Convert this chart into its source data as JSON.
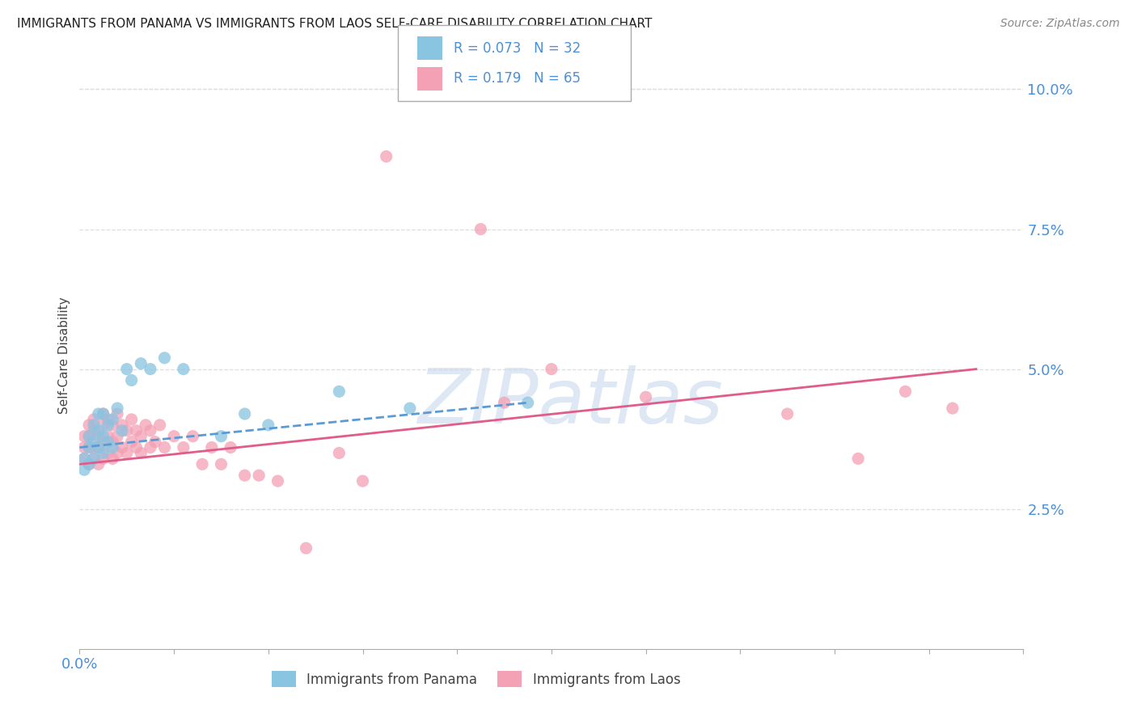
{
  "title": "IMMIGRANTS FROM PANAMA VS IMMIGRANTS FROM LAOS SELF-CARE DISABILITY CORRELATION CHART",
  "source": "Source: ZipAtlas.com",
  "xlabel_panama": "Immigrants from Panama",
  "xlabel_laos": "Immigrants from Laos",
  "ylabel": "Self-Care Disability",
  "xlim": [
    0.0,
    0.2
  ],
  "ylim": [
    0.0,
    0.105
  ],
  "xticks_minor": [
    0.0,
    0.02,
    0.04,
    0.06,
    0.08,
    0.1,
    0.12,
    0.14,
    0.16,
    0.18,
    0.2
  ],
  "xtick_labels_major": {
    "0.0": "0.0%"
  },
  "yticks": [
    0.025,
    0.05,
    0.075,
    0.1
  ],
  "ytick_labels": [
    "2.5%",
    "5.0%",
    "7.5%",
    "10.0%"
  ],
  "color_panama": "#89c4e1",
  "color_laos": "#f4a0b5",
  "color_panama_line": "#5b9bd5",
  "color_laos_line": "#e05c8a",
  "R_panama": 0.073,
  "N_panama": 32,
  "R_laos": 0.179,
  "N_laos": 65,
  "background_color": "#ffffff",
  "title_color": "#222222",
  "axis_color": "#4a90d9",
  "grid_color": "#dddddd",
  "panama_x": [
    0.001,
    0.001,
    0.002,
    0.002,
    0.002,
    0.003,
    0.003,
    0.003,
    0.004,
    0.004,
    0.004,
    0.005,
    0.005,
    0.005,
    0.006,
    0.006,
    0.007,
    0.007,
    0.008,
    0.009,
    0.01,
    0.011,
    0.013,
    0.015,
    0.018,
    0.022,
    0.03,
    0.035,
    0.04,
    0.055,
    0.07,
    0.095
  ],
  "panama_y": [
    0.034,
    0.032,
    0.036,
    0.033,
    0.038,
    0.034,
    0.037,
    0.04,
    0.036,
    0.039,
    0.042,
    0.035,
    0.038,
    0.042,
    0.037,
    0.04,
    0.036,
    0.041,
    0.043,
    0.039,
    0.05,
    0.048,
    0.051,
    0.05,
    0.052,
    0.05,
    0.038,
    0.042,
    0.04,
    0.046,
    0.043,
    0.044
  ],
  "laos_x": [
    0.001,
    0.001,
    0.001,
    0.002,
    0.002,
    0.002,
    0.002,
    0.003,
    0.003,
    0.003,
    0.003,
    0.004,
    0.004,
    0.004,
    0.005,
    0.005,
    0.005,
    0.005,
    0.006,
    0.006,
    0.006,
    0.007,
    0.007,
    0.007,
    0.008,
    0.008,
    0.008,
    0.009,
    0.009,
    0.01,
    0.01,
    0.011,
    0.011,
    0.012,
    0.012,
    0.013,
    0.013,
    0.014,
    0.015,
    0.015,
    0.016,
    0.017,
    0.018,
    0.02,
    0.022,
    0.024,
    0.026,
    0.028,
    0.03,
    0.032,
    0.035,
    0.038,
    0.042,
    0.048,
    0.055,
    0.06,
    0.065,
    0.085,
    0.09,
    0.1,
    0.12,
    0.15,
    0.165,
    0.175,
    0.185
  ],
  "laos_y": [
    0.034,
    0.036,
    0.038,
    0.033,
    0.036,
    0.038,
    0.04,
    0.034,
    0.036,
    0.039,
    0.041,
    0.033,
    0.036,
    0.038,
    0.034,
    0.037,
    0.04,
    0.042,
    0.035,
    0.038,
    0.041,
    0.034,
    0.037,
    0.04,
    0.035,
    0.038,
    0.042,
    0.036,
    0.04,
    0.035,
    0.039,
    0.037,
    0.041,
    0.036,
    0.039,
    0.035,
    0.038,
    0.04,
    0.036,
    0.039,
    0.037,
    0.04,
    0.036,
    0.038,
    0.036,
    0.038,
    0.033,
    0.036,
    0.033,
    0.036,
    0.031,
    0.031,
    0.03,
    0.018,
    0.035,
    0.03,
    0.088,
    0.075,
    0.044,
    0.05,
    0.045,
    0.042,
    0.034,
    0.046,
    0.043
  ],
  "panama_line_x": [
    0.0,
    0.095
  ],
  "panama_line_y": [
    0.036,
    0.044
  ],
  "laos_line_x": [
    0.0,
    0.19
  ],
  "laos_line_y": [
    0.033,
    0.05
  ]
}
